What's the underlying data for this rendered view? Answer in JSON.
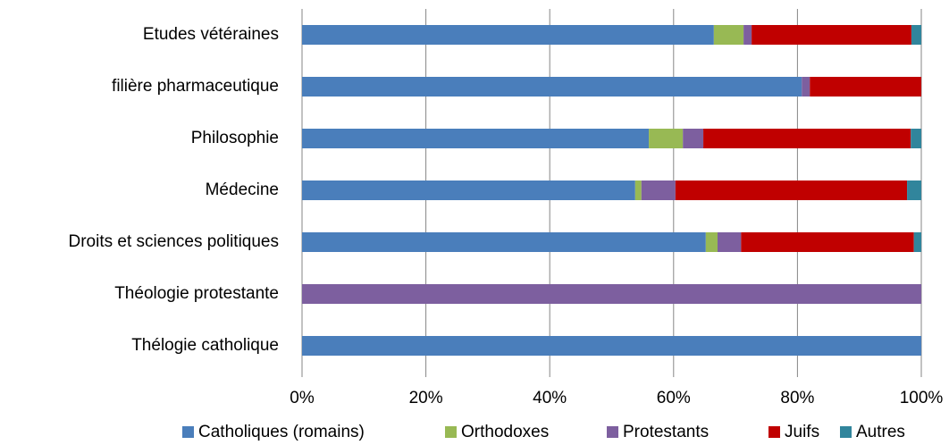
{
  "chart_data": {
    "type": "stacked-bar-horizontal",
    "categories": [
      "Etudes vétéraines",
      "filière pharmaceutique",
      "Philosophie",
      "Médecine",
      "Droits et sciences politiques",
      "Théologie protestante",
      "Thélogie catholique"
    ],
    "series": [
      {
        "name": "Catholiques (romains)",
        "color": "#4a7ebb",
        "values": [
          66.5,
          80.7,
          56.0,
          53.8,
          65.2,
          0,
          100
        ]
      },
      {
        "name": "Orthodoxes",
        "color": "#98b954",
        "values": [
          4.8,
          0,
          5.5,
          1.0,
          1.9,
          0,
          0
        ]
      },
      {
        "name": "Protestants",
        "color": "#7d5f9f",
        "values": [
          1.3,
          1.3,
          3.3,
          5.5,
          3.8,
          100,
          0
        ]
      },
      {
        "name": "Juifs",
        "color": "#c00000",
        "values": [
          25.8,
          18.0,
          33.5,
          37.4,
          27.9,
          0,
          0
        ]
      },
      {
        "name": "Autres",
        "color": "#31859c",
        "values": [
          1.6,
          0,
          1.7,
          2.3,
          1.2,
          0,
          0
        ]
      }
    ],
    "xlim": [
      0,
      100
    ],
    "xticks": [
      {
        "value": 0,
        "label": "0%"
      },
      {
        "value": 20,
        "label": "20%"
      },
      {
        "value": 40,
        "label": "40%"
      },
      {
        "value": 60,
        "label": "60%"
      },
      {
        "value": 80,
        "label": "80%"
      },
      {
        "value": 100,
        "label": "100%"
      }
    ],
    "grid": true,
    "legend": "bottom"
  }
}
